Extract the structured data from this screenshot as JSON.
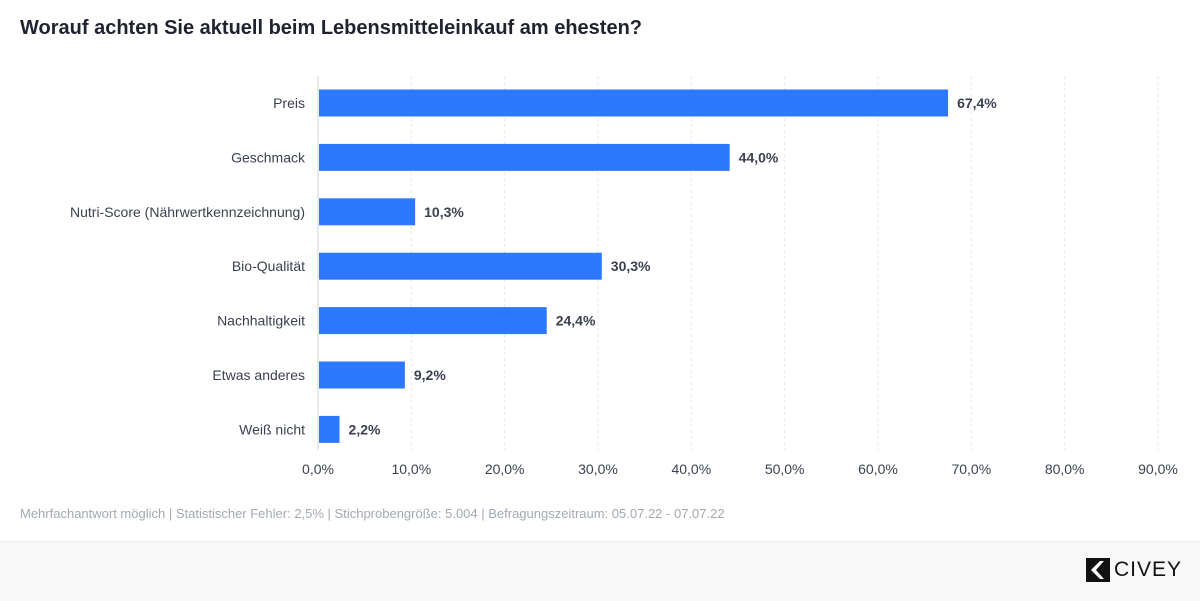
{
  "chart_data": {
    "type": "bar",
    "orientation": "horizontal",
    "title": "Worauf achten Sie aktuell beim Lebensmitteleinkauf am ehesten?",
    "categories": [
      "Preis",
      "Geschmack",
      "Nutri-Score (Nährwertkennzeichnung)",
      "Bio-Qualität",
      "Nachhaltigkeit",
      "Etwas anderes",
      "Weiß nicht"
    ],
    "values": [
      67.4,
      44.0,
      10.3,
      30.3,
      24.4,
      9.2,
      2.2
    ],
    "value_labels": [
      "67,4%",
      "44,0%",
      "10,3%",
      "30,3%",
      "24,4%",
      "9,2%",
      "2,2%"
    ],
    "xlim": [
      0,
      90
    ],
    "xticks": [
      "0,0%",
      "10,0%",
      "20,0%",
      "30,0%",
      "40,0%",
      "50,0%",
      "60,0%",
      "70,0%",
      "80,0%",
      "90,0%"
    ],
    "grid": true,
    "bar_color": "#2d79fe"
  },
  "footnote": "Mehrfachantwort möglich | Statistischer Fehler: 2,5% | Stichprobengröße: 5.004 | Befragungszeitraum: 05.07.22 - 07.07.22",
  "logo": {
    "text": "CIVEY"
  }
}
